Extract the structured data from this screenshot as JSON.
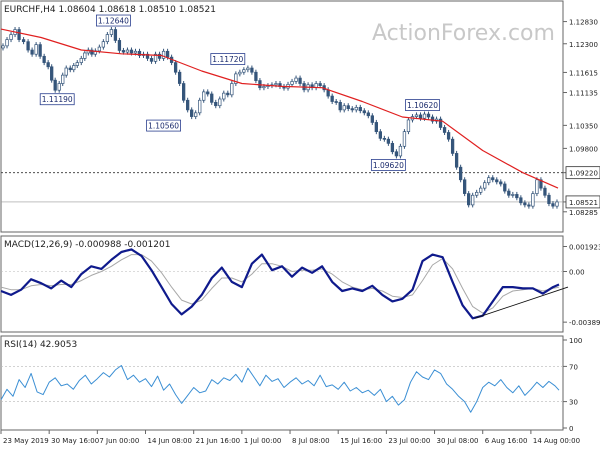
{
  "chart_data": [
    {
      "type": "candlestick",
      "header": "EURCHF,H4  1.08604 1.08618 1.08510 1.08521",
      "watermark": "ActionForex.com",
      "ylim": [
        1.0785,
        1.1325
      ],
      "yticks": [
        "1.12830",
        "1.12300",
        "1.11615",
        "1.11135",
        "1.10350",
        "1.09800",
        "1.09220",
        "1.08521",
        "1.08285"
      ],
      "ytick_values": [
        1.1283,
        1.123,
        1.11615,
        1.11135,
        1.1035,
        1.098,
        1.0922,
        1.08521,
        1.08285
      ],
      "current_price": 1.08521,
      "reference_level": 1.0922,
      "price_path_x": [
        0,
        4,
        8,
        12,
        16,
        20,
        25,
        29,
        33,
        37,
        41,
        45,
        49,
        52,
        56,
        60,
        63,
        67,
        71,
        74,
        78,
        82,
        85,
        89,
        92,
        96,
        100,
        104,
        108,
        112,
        116,
        120,
        124,
        128,
        132,
        136,
        140,
        144,
        148,
        152,
        156,
        160,
        164,
        168,
        172,
        176,
        180,
        184,
        188,
        192,
        196,
        200,
        204,
        208,
        212,
        216,
        220,
        224,
        228,
        232,
        236,
        240,
        244,
        248,
        252,
        256,
        260,
        264,
        268,
        272,
        276,
        280,
        284,
        288,
        292,
        296,
        300,
        304,
        308,
        312,
        316,
        320,
        324,
        328,
        332,
        336,
        340,
        344,
        348,
        352,
        356,
        360,
        364,
        368,
        372,
        376,
        380,
        384,
        388,
        392,
        396,
        400,
        404,
        408,
        412,
        416,
        420,
        424,
        428,
        432,
        436,
        440,
        444,
        448,
        452,
        456,
        460,
        464,
        468,
        472,
        476,
        480,
        484,
        488,
        492,
        496,
        500,
        504,
        508,
        512,
        516,
        520,
        524,
        528,
        532,
        536,
        540,
        544,
        548,
        552,
        556
      ],
      "price_path_y": [
        1.122,
        1.1225,
        1.124,
        1.1252,
        1.1264,
        1.124,
        1.1235,
        1.1215,
        1.1205,
        1.1228,
        1.12,
        1.1185,
        1.1175,
        1.1143,
        1.1119,
        1.1135,
        1.1155,
        1.1172,
        1.1168,
        1.1178,
        1.1185,
        1.1195,
        1.1208,
        1.1215,
        1.1205,
        1.1213,
        1.1222,
        1.1235,
        1.1252,
        1.1264,
        1.1238,
        1.1214,
        1.121,
        1.1215,
        1.1208,
        1.1212,
        1.1202,
        1.1205,
        1.1195,
        1.1188,
        1.1205,
        1.1195,
        1.1212,
        1.1198,
        1.1185,
        1.1162,
        1.1135,
        1.1095,
        1.1072,
        1.1056,
        1.1065,
        1.1095,
        1.1115,
        1.111,
        1.109,
        1.1082,
        1.1098,
        1.1112,
        1.1108,
        1.1135,
        1.1158,
        1.1162,
        1.1168,
        1.1172,
        1.1162,
        1.1142,
        1.1125,
        1.1128,
        1.113,
        1.1132,
        1.1135,
        1.1128,
        1.1124,
        1.1133,
        1.114,
        1.1148,
        1.1135,
        1.112,
        1.1132,
        1.1125,
        1.1135,
        1.113,
        1.112,
        1.1105,
        1.1092,
        1.109,
        1.1072,
        1.1082,
        1.1075,
        1.1072,
        1.1078,
        1.107,
        1.1065,
        1.1058,
        1.1042,
        1.102,
        1.1004,
        1.1002,
        1.0992,
        1.0972,
        1.0962,
        1.0985,
        1.102,
        1.1048,
        1.1056,
        1.106,
        1.1052,
        1.1062,
        1.1055,
        1.1045,
        1.105,
        1.103,
        1.1018,
        1.1002,
        1.0968,
        1.0935,
        1.0905,
        1.0872,
        1.0845,
        1.0868,
        1.0875,
        1.0885,
        1.0898,
        1.091,
        1.0905,
        1.09,
        1.0895,
        1.0878,
        1.0868,
        1.087,
        1.0862,
        1.085,
        1.0845,
        1.0842,
        1.0872,
        1.0905,
        1.0885,
        1.0868,
        1.0848,
        1.0842,
        1.0852
      ],
      "ma_path_x": [
        0,
        40,
        80,
        120,
        160,
        200,
        240,
        280,
        320,
        360,
        400,
        440,
        480,
        520,
        555
      ],
      "ma_path_y": [
        1.1265,
        1.1245,
        1.1215,
        1.1206,
        1.1202,
        1.1165,
        1.1135,
        1.1128,
        1.1125,
        1.1092,
        1.1055,
        1.1045,
        1.0975,
        1.0922,
        1.0885
      ],
      "annotations": [
        {
          "label": "1.12640",
          "x": 112,
          "y": 1.1264
        },
        {
          "label": "1.11190",
          "x": 56,
          "y": 1.1119
        },
        {
          "label": "1.10560",
          "x": 162,
          "y": 1.1056
        },
        {
          "label": "1.11720",
          "x": 226,
          "y": 1.1172
        },
        {
          "label": "1.09620",
          "x": 386,
          "y": 1.0962
        },
        {
          "label": "1.10620",
          "x": 420,
          "y": 1.1062
        }
      ]
    },
    {
      "type": "line",
      "label": "MACD(12,26,9) -0.000988 -0.001201",
      "ylim": [
        -0.0045,
        0.0025
      ],
      "yticks": [
        "0.001923",
        "0.00",
        "-0.003896"
      ],
      "ytick_values": [
        0.001923,
        0.0,
        -0.003896
      ],
      "x": [
        0,
        10,
        20,
        30,
        40,
        50,
        60,
        70,
        80,
        90,
        100,
        110,
        120,
        130,
        140,
        150,
        160,
        170,
        180,
        190,
        200,
        210,
        220,
        230,
        240,
        250,
        260,
        270,
        280,
        290,
        300,
        310,
        320,
        330,
        340,
        350,
        360,
        370,
        380,
        390,
        400,
        410,
        420,
        430,
        440,
        450,
        460,
        470,
        480,
        490,
        500,
        510,
        520,
        530,
        540,
        550,
        556
      ],
      "series": [
        {
          "values": [
            -0.0015,
            -0.0018,
            -0.0014,
            -0.0006,
            -0.0009,
            -0.0013,
            -0.0007,
            -0.0012,
            -0.0002,
            0.0004,
            0.0002,
            0.0009,
            0.0015,
            0.0017,
            0.0012,
            0.0001,
            -0.0012,
            -0.0025,
            -0.0033,
            -0.0027,
            -0.0018,
            -0.0005,
            0.0003,
            -0.0008,
            -0.0012,
            0.0006,
            0.0013,
            0.0001,
            0.0004,
            -0.0004,
            0.0003,
            -0.0001,
            0.0004,
            -0.0008,
            -0.0015,
            -0.0013,
            -0.0015,
            -0.0011,
            -0.0018,
            -0.0023,
            -0.0021,
            -0.0014,
            0.0008,
            0.0013,
            0.0011,
            -0.0008,
            -0.0026,
            -0.0036,
            -0.0034,
            -0.0023,
            -0.0012,
            -0.0012,
            -0.0013,
            -0.0013,
            -0.0017,
            -0.0012,
            -0.001
          ]
        },
        {
          "values": [
            -0.0012,
            -0.0014,
            -0.0014,
            -0.0011,
            -0.001,
            -0.0011,
            -0.001,
            -0.001,
            -0.0007,
            -0.0003,
            0.0,
            0.0004,
            0.0009,
            0.0013,
            0.0013,
            0.0008,
            -0.0001,
            -0.0012,
            -0.0022,
            -0.0025,
            -0.0022,
            -0.0013,
            -0.0005,
            -0.0005,
            -0.0008,
            -0.0002,
            0.0006,
            0.0006,
            0.0004,
            0.0,
            0.0001,
            0.0001,
            0.0002,
            -0.0002,
            -0.0008,
            -0.0012,
            -0.0014,
            -0.0013,
            -0.0015,
            -0.0019,
            -0.002,
            -0.0018,
            -0.0007,
            0.0005,
            0.001,
            0.0002,
            -0.0013,
            -0.0027,
            -0.0032,
            -0.0028,
            -0.0019,
            -0.0015,
            -0.0014,
            -0.0013,
            -0.0015,
            -0.0013,
            -0.0012
          ]
        }
      ],
      "trendline": {
        "x": [
          472,
          565
        ],
        "y": [
          -0.0036,
          -0.0012
        ]
      }
    },
    {
      "type": "line",
      "label": "RSI(14) 42.9053",
      "ylim": [
        0,
        100
      ],
      "yticks": [
        "100",
        "70",
        "30",
        "0"
      ],
      "ytick_values": [
        100,
        70,
        30,
        0
      ],
      "x": [
        0,
        6,
        12,
        18,
        24,
        30,
        36,
        42,
        48,
        54,
        60,
        66,
        72,
        78,
        84,
        90,
        96,
        102,
        108,
        114,
        120,
        126,
        132,
        138,
        144,
        150,
        156,
        162,
        168,
        174,
        180,
        186,
        192,
        198,
        204,
        210,
        216,
        222,
        228,
        234,
        240,
        246,
        252,
        258,
        264,
        270,
        276,
        282,
        288,
        294,
        300,
        306,
        312,
        318,
        324,
        330,
        336,
        342,
        348,
        354,
        360,
        366,
        372,
        378,
        384,
        390,
        396,
        402,
        408,
        414,
        420,
        426,
        432,
        438,
        444,
        450,
        456,
        462,
        468,
        474,
        480,
        486,
        492,
        498,
        504,
        510,
        516,
        522,
        528,
        534,
        540,
        546,
        552,
        556
      ],
      "series": [
        {
          "values": [
            32,
            44,
            36,
            55,
            46,
            62,
            41,
            38,
            52,
            57,
            48,
            50,
            44,
            54,
            60,
            50,
            56,
            63,
            58,
            66,
            71,
            55,
            60,
            52,
            56,
            47,
            59,
            43,
            50,
            38,
            28,
            37,
            46,
            40,
            42,
            55,
            50,
            57,
            54,
            61,
            52,
            68,
            58,
            48,
            60,
            53,
            56,
            46,
            52,
            57,
            50,
            54,
            48,
            60,
            47,
            49,
            44,
            52,
            42,
            46,
            40,
            43,
            37,
            44,
            30,
            36,
            26,
            32,
            52,
            64,
            58,
            55,
            66,
            62,
            50,
            44,
            36,
            30,
            18,
            30,
            46,
            52,
            48,
            55,
            46,
            40,
            48,
            37,
            44,
            52,
            46,
            53,
            48,
            43
          ]
        }
      ]
    }
  ],
  "xaxis": {
    "ticks": [
      "23 May 2019",
      "30 May 16:00",
      "7 Jun 00:00",
      "14 Jun 08:00",
      "21 Jun 16:00",
      "1 Jul 00:00",
      "8 Jul 08:00",
      "15 Jul 16:00",
      "23 Jul 00:00",
      "30 Jul 08:00",
      "6 Aug 16:00",
      "14 Aug 00:00"
    ],
    "tick_x": [
      0,
      48,
      96,
      144,
      192,
      240,
      288,
      336,
      384,
      432,
      480,
      528
    ]
  },
  "colors": {
    "price": "#35557a",
    "moving_average": "#e02020",
    "macd_main": "#0f1a8c",
    "macd_signal": "#a8a8a8",
    "rsi": "#3b8fd4",
    "grid": "#b8b8b8",
    "border": "#666666",
    "text": "#222222",
    "label_border": "#2a3f8f"
  }
}
